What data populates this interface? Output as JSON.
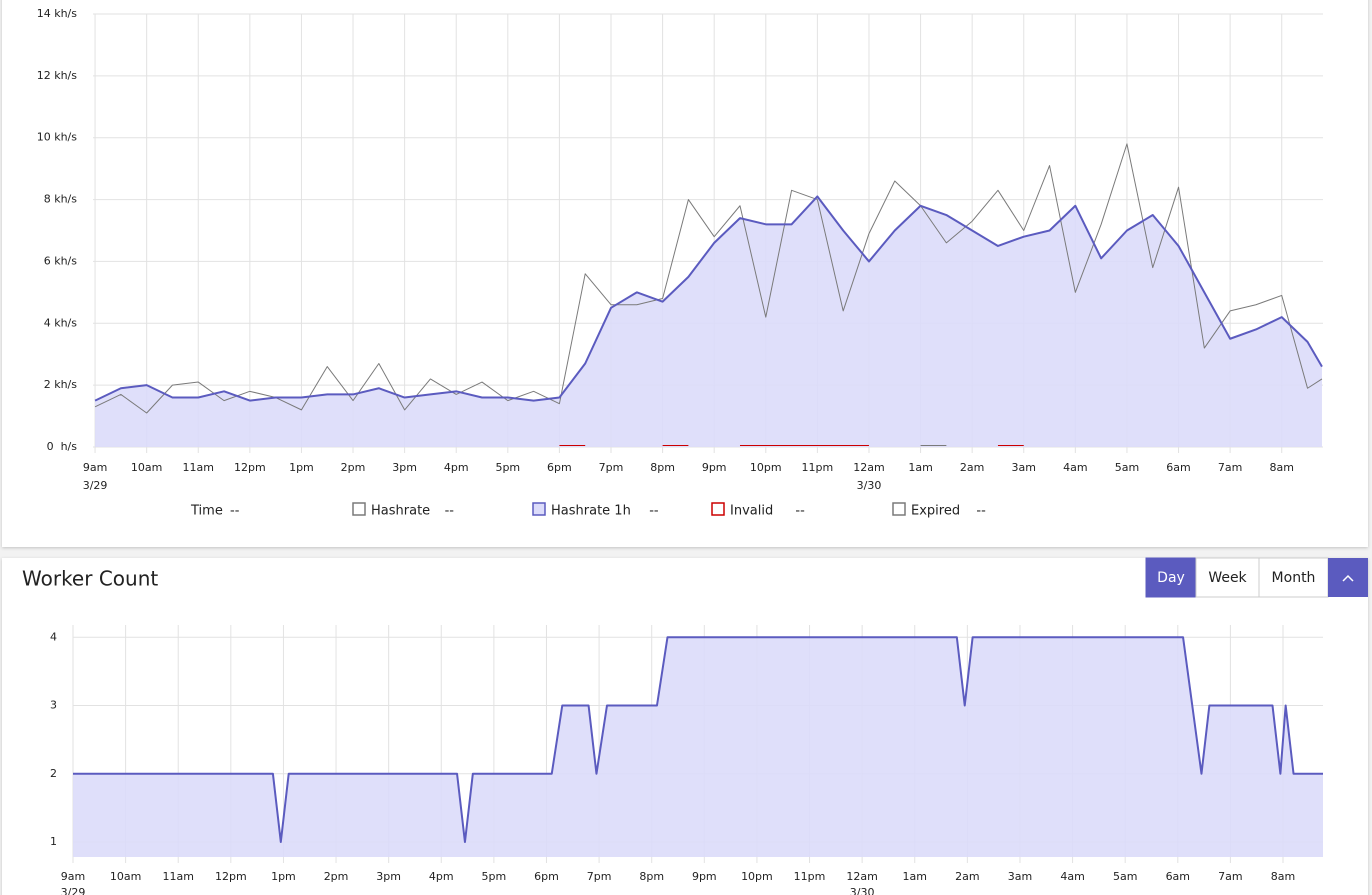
{
  "chart_data": [
    {
      "type": "line",
      "x_label": "Time",
      "legend_placeholder": "--",
      "x": [
        0,
        0.5,
        1,
        1.5,
        2,
        2.5,
        3,
        3.5,
        4,
        4.5,
        5,
        5.5,
        6,
        6.5,
        7,
        7.5,
        8,
        8.5,
        9,
        9.5,
        10,
        10.5,
        11,
        11.5,
        12,
        12.5,
        13,
        13.5,
        14,
        14.5,
        15,
        15.5,
        16,
        16.5,
        17,
        17.5,
        18,
        18.5,
        19,
        19.5,
        20,
        20.5,
        21,
        21.5,
        22,
        22.5,
        23,
        23.5,
        23.78
      ],
      "series": [
        {
          "name": "Hashrate",
          "color": "#7a7a7a",
          "width": 1,
          "values": [
            1.3,
            1.7,
            1.1,
            2.0,
            2.1,
            1.5,
            1.8,
            1.6,
            1.2,
            2.6,
            1.5,
            2.7,
            1.2,
            2.2,
            1.7,
            2.1,
            1.5,
            1.8,
            1.4,
            5.6,
            4.6,
            4.6,
            4.8,
            8.0,
            6.8,
            7.8,
            4.2,
            8.3,
            8.0,
            4.4,
            6.9,
            8.6,
            7.8,
            6.6,
            7.3,
            8.3,
            7.0,
            9.1,
            5.0,
            7.2,
            9.8,
            5.8,
            8.4,
            3.2,
            4.4,
            4.6,
            4.9,
            1.9,
            2.2
          ]
        },
        {
          "name": "Hashrate 1h",
          "color": "#5b5bbf",
          "fill": "#dcdcfa",
          "width": 2,
          "values": [
            1.5,
            1.9,
            2.0,
            1.6,
            1.6,
            1.8,
            1.5,
            1.6,
            1.6,
            1.7,
            1.7,
            1.9,
            1.6,
            1.7,
            1.8,
            1.6,
            1.6,
            1.5,
            1.6,
            2.7,
            4.5,
            5.0,
            4.7,
            5.5,
            6.6,
            7.4,
            7.2,
            7.2,
            8.1,
            7.0,
            6.0,
            7.0,
            7.8,
            7.5,
            7.0,
            6.5,
            6.8,
            7.0,
            7.8,
            6.1,
            7.0,
            7.5,
            6.5,
            5.0,
            3.5,
            3.8,
            4.2,
            3.4,
            2.6
          ]
        },
        {
          "name": "Invalid",
          "color": "#cc0000",
          "width": 1,
          "values": [
            null,
            null,
            null,
            null,
            null,
            null,
            null,
            null,
            null,
            null,
            null,
            null,
            null,
            null,
            null,
            null,
            null,
            null,
            0.05,
            0.05,
            null,
            null,
            0.05,
            0.05,
            null,
            0.05,
            0.05,
            0.05,
            0.05,
            0.05,
            0.05,
            null,
            null,
            null,
            null,
            0.05,
            0.05,
            null,
            null,
            null,
            null,
            null,
            null,
            null,
            null,
            null,
            null,
            null,
            null
          ]
        },
        {
          "name": "Expired",
          "color": "#7a7a7a",
          "width": 1,
          "values": [
            null,
            null,
            null,
            null,
            null,
            null,
            null,
            null,
            null,
            null,
            null,
            null,
            null,
            null,
            null,
            null,
            null,
            null,
            null,
            null,
            null,
            null,
            null,
            null,
            null,
            null,
            null,
            null,
            null,
            null,
            null,
            null,
            0.05,
            0.05,
            null,
            null,
            null,
            null,
            null,
            null,
            null,
            null,
            null,
            null,
            null,
            null,
            null,
            null,
            null
          ]
        }
      ],
      "xlim": [
        -0.04,
        23.8
      ],
      "xticks": [
        {
          "value": 0,
          "label": "9am"
        },
        {
          "value": 1,
          "label": "10am"
        },
        {
          "value": 2,
          "label": "11am"
        },
        {
          "value": 3,
          "label": "12pm"
        },
        {
          "value": 4,
          "label": "1pm"
        },
        {
          "value": 5,
          "label": "2pm"
        },
        {
          "value": 6,
          "label": "3pm"
        },
        {
          "value": 7,
          "label": "4pm"
        },
        {
          "value": 8,
          "label": "5pm"
        },
        {
          "value": 9,
          "label": "6pm"
        },
        {
          "value": 10,
          "label": "7pm"
        },
        {
          "value": 11,
          "label": "8pm"
        },
        {
          "value": 12,
          "label": "9pm"
        },
        {
          "value": 13,
          "label": "10pm"
        },
        {
          "value": 14,
          "label": "11pm"
        },
        {
          "value": 15,
          "label": "12am"
        },
        {
          "value": 16,
          "label": "1am"
        },
        {
          "value": 17,
          "label": "2am"
        },
        {
          "value": 18,
          "label": "3am"
        },
        {
          "value": 19,
          "label": "4am"
        },
        {
          "value": 20,
          "label": "5am"
        },
        {
          "value": 21,
          "label": "6am"
        },
        {
          "value": 22,
          "label": "7am"
        },
        {
          "value": 23,
          "label": "8am"
        }
      ],
      "date_labels": [
        {
          "value": 0,
          "label": "3/29"
        },
        {
          "value": 15,
          "label": "3/30"
        }
      ],
      "ylim": [
        0,
        14
      ],
      "yticks": [
        {
          "value": 0,
          "label": "0  h/s"
        },
        {
          "value": 2,
          "label": "2 kh/s"
        },
        {
          "value": 4,
          "label": "4 kh/s"
        },
        {
          "value": 6,
          "label": "6 kh/s"
        },
        {
          "value": 8,
          "label": "8 kh/s"
        },
        {
          "value": 10,
          "label": "10 kh/s"
        },
        {
          "value": 12,
          "label": "12 kh/s"
        },
        {
          "value": 14,
          "label": "14 kh/s"
        }
      ],
      "grid": true
    },
    {
      "type": "line",
      "title": "Worker Count",
      "controls": {
        "options": [
          "Day",
          "Week",
          "Month"
        ],
        "selected": 0
      },
      "x": [
        0,
        3.8,
        3.95,
        4.1,
        7.3,
        7.45,
        7.6,
        9.1,
        9.3,
        9.8,
        9.95,
        10.15,
        11.1,
        11.3,
        16.8,
        16.95,
        17.1,
        21.1,
        21.45,
        21.6,
        22.8,
        22.95,
        23.05,
        23.2,
        23.76
      ],
      "series": [
        {
          "color": "#5b5bbf",
          "fill": "#dcdcfa",
          "width": 2,
          "values": [
            2,
            2,
            1,
            2,
            2,
            1,
            2,
            2,
            3,
            3,
            2,
            3,
            3,
            4,
            4,
            3,
            4,
            4,
            2,
            3,
            3,
            2,
            3,
            2,
            2
          ]
        }
      ],
      "xlim": [
        0,
        23.76
      ],
      "xticks": [
        {
          "value": 0,
          "label": "9am"
        },
        {
          "value": 1,
          "label": "10am"
        },
        {
          "value": 2,
          "label": "11am"
        },
        {
          "value": 3,
          "label": "12pm"
        },
        {
          "value": 4,
          "label": "1pm"
        },
        {
          "value": 5,
          "label": "2pm"
        },
        {
          "value": 6,
          "label": "3pm"
        },
        {
          "value": 7,
          "label": "4pm"
        },
        {
          "value": 8,
          "label": "5pm"
        },
        {
          "value": 9,
          "label": "6pm"
        },
        {
          "value": 10,
          "label": "7pm"
        },
        {
          "value": 11,
          "label": "8pm"
        },
        {
          "value": 12,
          "label": "9pm"
        },
        {
          "value": 13,
          "label": "10pm"
        },
        {
          "value": 14,
          "label": "11pm"
        },
        {
          "value": 15,
          "label": "12am"
        },
        {
          "value": 16,
          "label": "1am"
        },
        {
          "value": 17,
          "label": "2am"
        },
        {
          "value": 18,
          "label": "3am"
        },
        {
          "value": 19,
          "label": "4am"
        },
        {
          "value": 20,
          "label": "5am"
        },
        {
          "value": 21,
          "label": "6am"
        },
        {
          "value": 22,
          "label": "7am"
        },
        {
          "value": 23,
          "label": "8am"
        }
      ],
      "date_labels": [
        {
          "value": 0,
          "label": "3/29"
        },
        {
          "value": 15,
          "label": "3/30"
        }
      ],
      "ylim": [
        0.78,
        4.18
      ],
      "yticks": [
        1,
        2,
        3,
        4
      ],
      "grid": true
    }
  ]
}
